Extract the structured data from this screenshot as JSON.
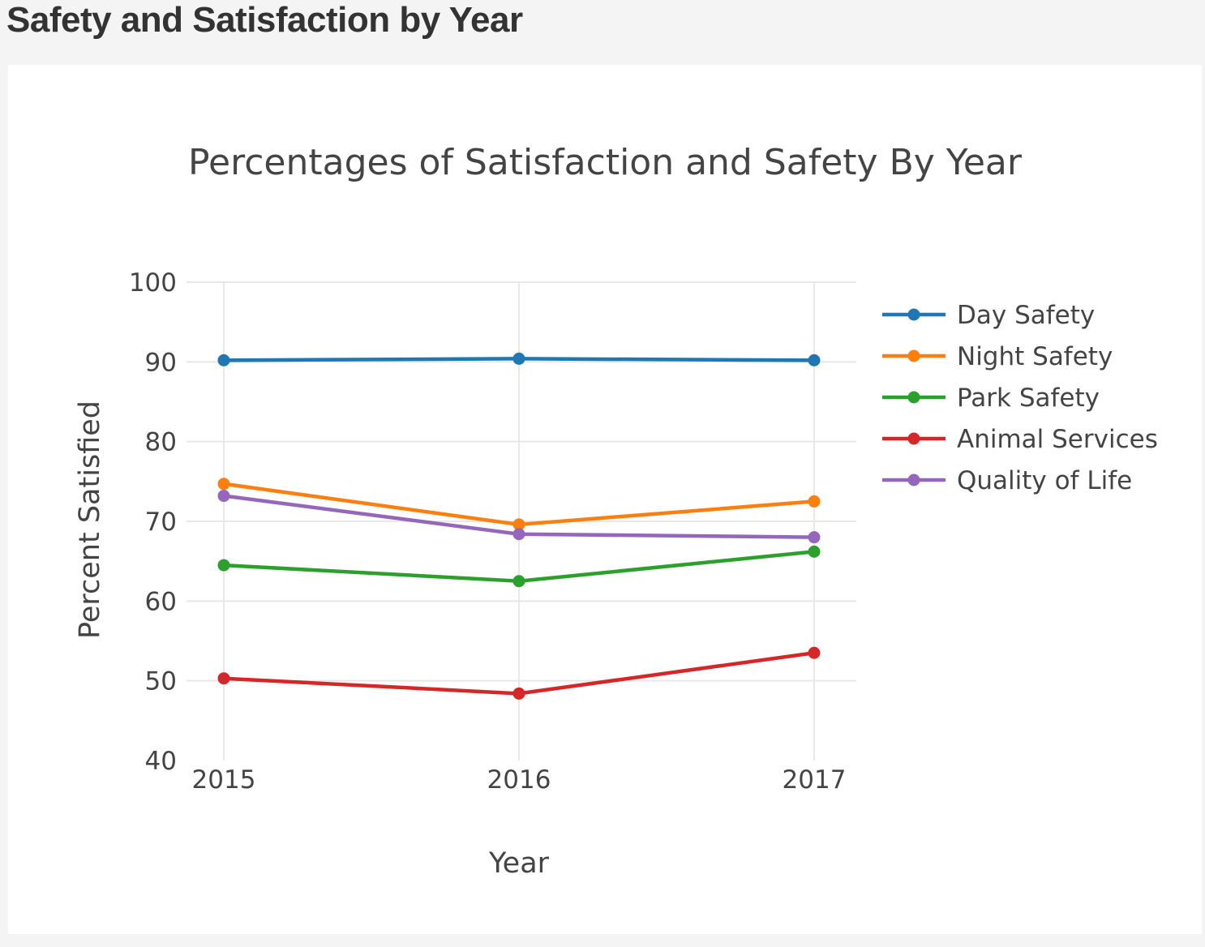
{
  "page": {
    "heading": "Safety and Satisfaction by Year"
  },
  "chart_data": {
    "type": "line",
    "title": "Percentages of Satisfaction and Safety By Year",
    "xlabel": "Year",
    "ylabel": "Percent Satisfied",
    "x": [
      2015,
      2016,
      2017
    ],
    "xticks": [
      "2015",
      "2016",
      "2017"
    ],
    "yticks": [
      "40",
      "50",
      "60",
      "70",
      "80",
      "90",
      "100"
    ],
    "ylim": [
      40,
      100
    ],
    "grid": true,
    "legend_position": "right",
    "series": [
      {
        "name": "Day Safety",
        "color": "#1f77b4",
        "values": [
          90.2,
          90.4,
          90.2
        ]
      },
      {
        "name": "Night Safety",
        "color": "#ff7f0e",
        "values": [
          74.7,
          69.6,
          72.5
        ]
      },
      {
        "name": "Park Safety",
        "color": "#2ca02c",
        "values": [
          64.5,
          62.5,
          66.2
        ]
      },
      {
        "name": "Animal Services",
        "color": "#d62728",
        "values": [
          50.3,
          48.4,
          53.5
        ]
      },
      {
        "name": "Quality of Life",
        "color": "#9467bd",
        "values": [
          73.2,
          68.4,
          68.0
        ]
      }
    ]
  }
}
